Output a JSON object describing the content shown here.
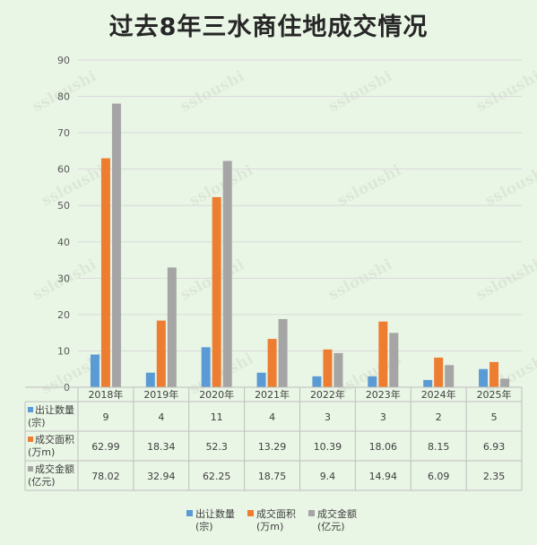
{
  "chart_data": {
    "type": "bar",
    "title": "过去8年三水商住地成交情况",
    "categories": [
      "2018年",
      "2019年",
      "2020年",
      "2021年",
      "2022年",
      "2023年",
      "2024年",
      "2025年"
    ],
    "ylim": [
      0,
      90
    ],
    "yticks": [
      0,
      10,
      20,
      30,
      40,
      50,
      60,
      70,
      80,
      90
    ],
    "grid": true,
    "legend_position": "bottom",
    "series": [
      {
        "name": "出让数量",
        "unit": "(宗)",
        "color": "#5b9bd5",
        "values": [
          9,
          4,
          11,
          4,
          3,
          3,
          2,
          5
        ],
        "labels": [
          "9",
          "4",
          "11",
          "4",
          "3",
          "3",
          "2",
          "5"
        ]
      },
      {
        "name": "成交面积",
        "unit": "(万m)",
        "color": "#ed7d31",
        "values": [
          62.99,
          18.34,
          52.3,
          13.29,
          10.39,
          18.06,
          8.15,
          6.93
        ],
        "labels": [
          "62.99",
          "18.34",
          "52.3",
          "13.29",
          "10.39",
          "18.06",
          "8.15",
          "6.93"
        ]
      },
      {
        "name": "成交金额",
        "unit": "(亿元)",
        "color": "#a5a5a5",
        "values": [
          78.02,
          32.94,
          62.25,
          18.75,
          9.4,
          14.94,
          6.09,
          2.35
        ],
        "labels": [
          "78.02",
          "32.94",
          "62.25",
          "18.75",
          "9.4",
          "14.94",
          "6.09",
          "2.35"
        ]
      }
    ]
  },
  "watermark": {
    "brand": "ssloushi"
  }
}
